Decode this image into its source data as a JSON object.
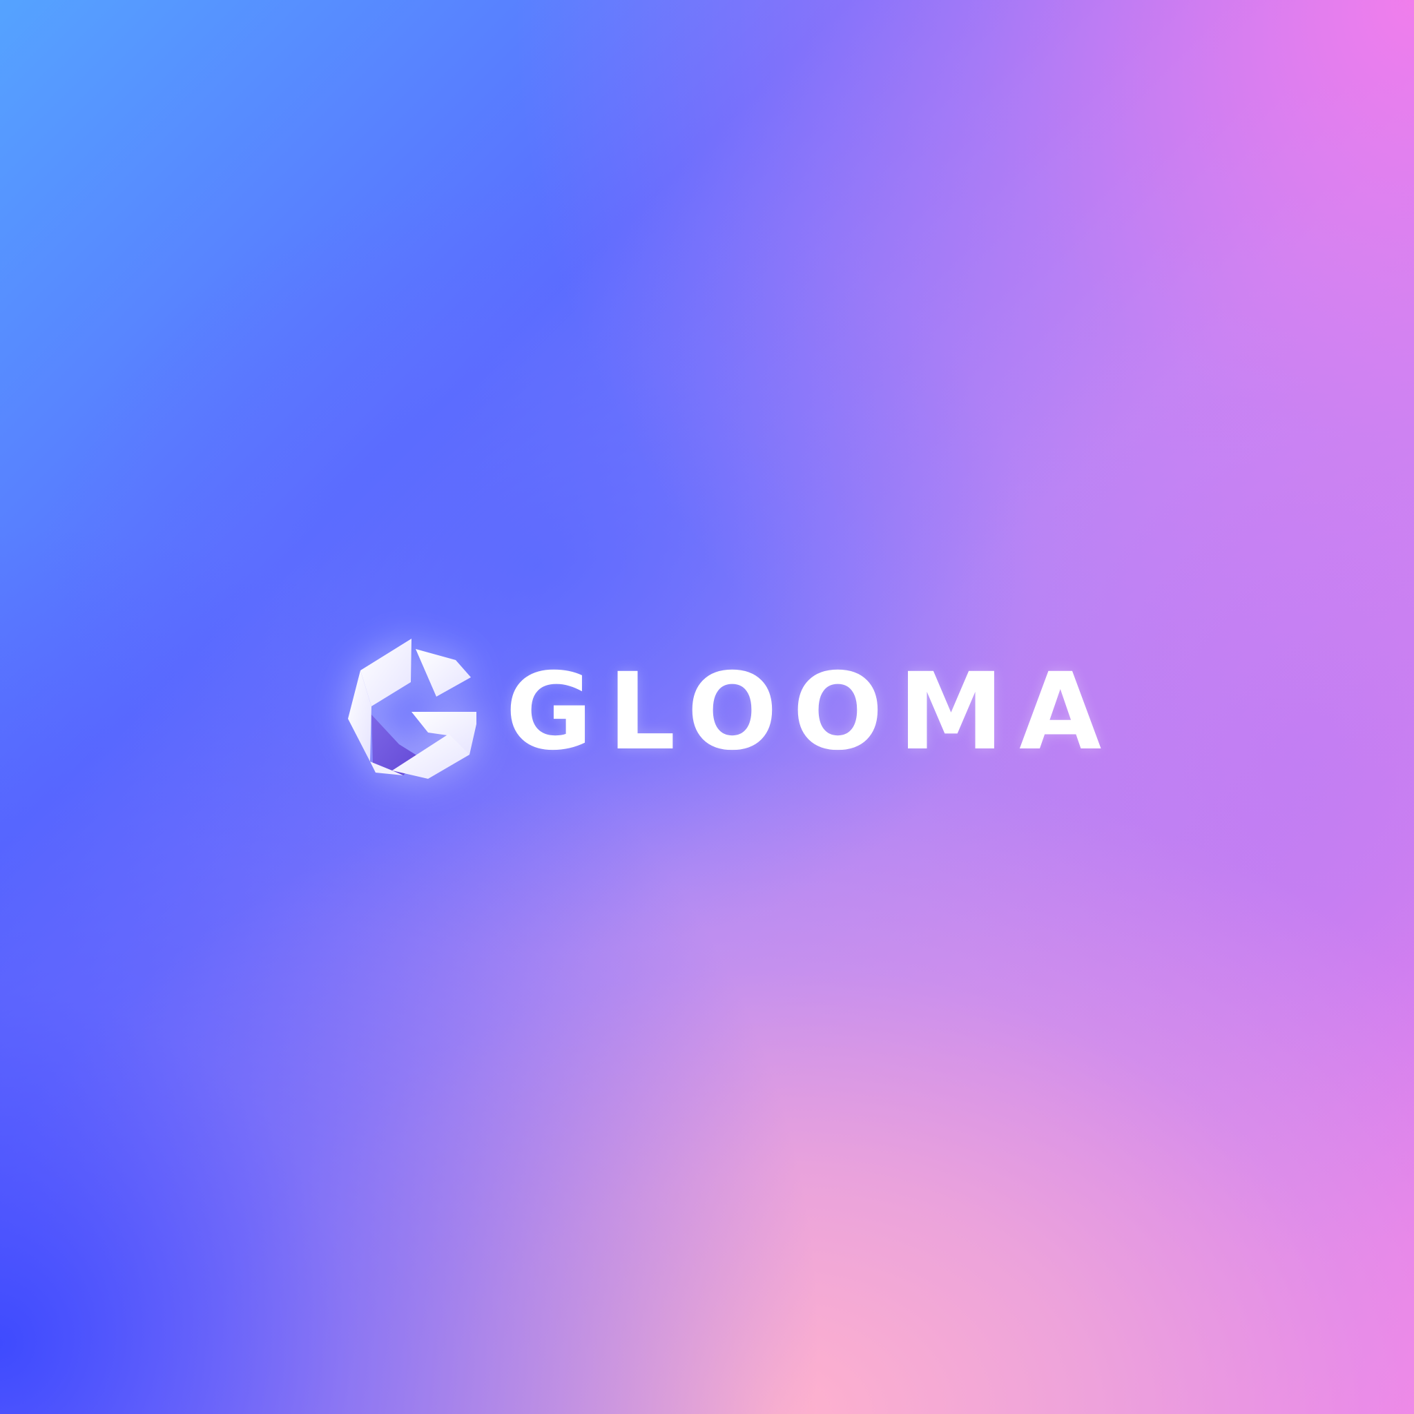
{
  "brand": {
    "name": "GLOOMA",
    "mark_icon": "folded-ribbon-g-icon",
    "mark_color": "#ffffff",
    "mark_shadow_color": "#6f57dc",
    "text_color": "#ffffff"
  },
  "background": {
    "colors": [
      "#55a3ff",
      "#5a6cff",
      "#3a48ff",
      "#a986f7",
      "#f77fe9",
      "#ffb2cd"
    ]
  }
}
